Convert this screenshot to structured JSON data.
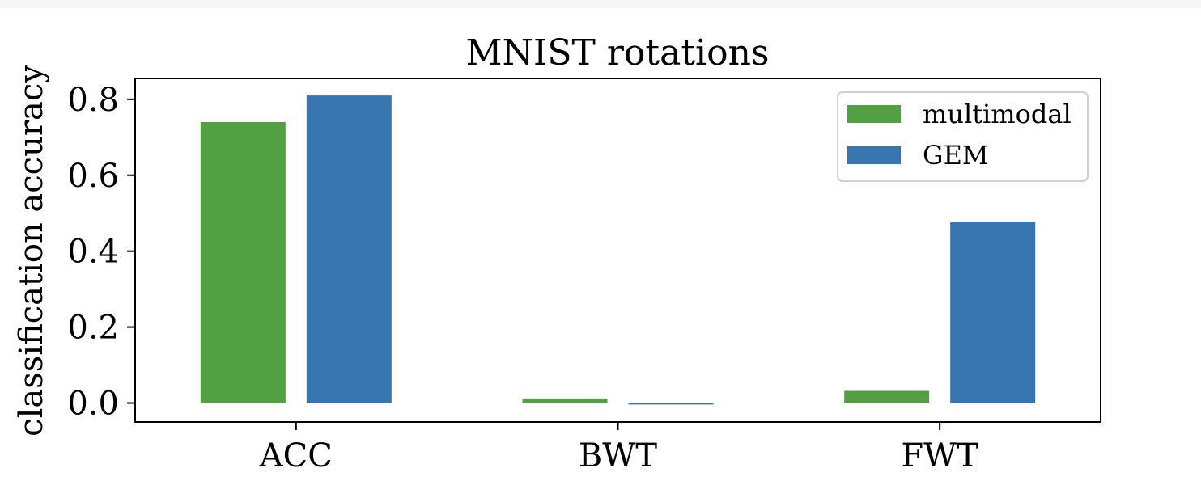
{
  "chart_data": {
    "type": "bar",
    "title": "MNIST rotations",
    "xlabel": "",
    "ylabel": "classification accuracy",
    "categories": [
      "ACC",
      "BWT",
      "FWT"
    ],
    "series": [
      {
        "name": "multimodal",
        "color": "#53a043",
        "values": [
          0.74,
          0.012,
          0.032
        ]
      },
      {
        "name": "GEM",
        "color": "#3776b0",
        "values": [
          0.81,
          -0.004,
          0.478
        ]
      }
    ],
    "ylim": [
      -0.05,
      0.855
    ],
    "yticks": [
      "0.0",
      "0.2",
      "0.4",
      "0.6",
      "0.8"
    ],
    "ytick_values": [
      0.0,
      0.2,
      0.4,
      0.6,
      0.8
    ],
    "grid": false,
    "legend": "top-right"
  }
}
